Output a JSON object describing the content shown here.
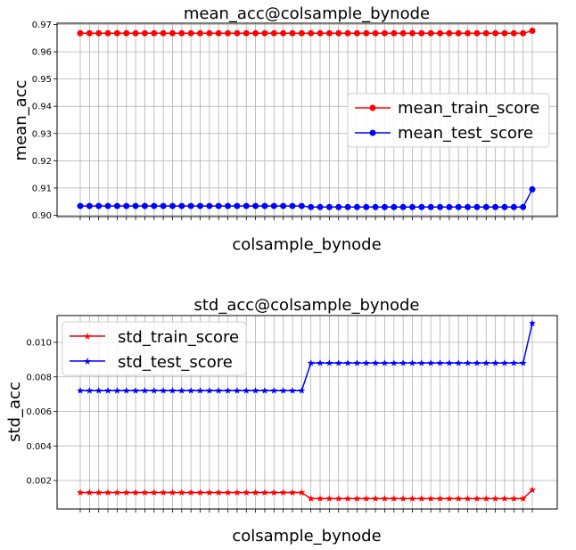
{
  "chart_data": [
    {
      "type": "line",
      "title": "mean_acc@colsample_bynode",
      "xlabel": "colsample_bynode",
      "ylabel": "mean_acc",
      "ylim": [
        0.8995,
        0.9705
      ],
      "yticks": [
        "0.90",
        "0.91",
        "0.92",
        "0.93",
        "0.94",
        "0.95",
        "0.96",
        "0.97"
      ],
      "grid": true,
      "legend_position": "center-right",
      "point_count": 50,
      "series": [
        {
          "name": "mean_train_score",
          "color": "#ff0000",
          "marker": "circle",
          "values": [
            0.9668,
            0.9668,
            0.9668,
            0.9668,
            0.9668,
            0.9668,
            0.9668,
            0.9668,
            0.9668,
            0.9668,
            0.9668,
            0.9668,
            0.9668,
            0.9668,
            0.9668,
            0.9668,
            0.9668,
            0.9668,
            0.9668,
            0.9668,
            0.9668,
            0.9668,
            0.9668,
            0.9668,
            0.9668,
            0.9668,
            0.9668,
            0.9668,
            0.9668,
            0.9668,
            0.9668,
            0.9668,
            0.9668,
            0.9668,
            0.9668,
            0.9668,
            0.9668,
            0.9668,
            0.9668,
            0.9668,
            0.9668,
            0.9668,
            0.9668,
            0.9668,
            0.9668,
            0.9668,
            0.9668,
            0.9668,
            0.9668,
            0.9677
          ]
        },
        {
          "name": "mean_test_score",
          "color": "#0000ff",
          "marker": "circle",
          "values": [
            0.9034,
            0.9034,
            0.9034,
            0.9034,
            0.9034,
            0.9034,
            0.9034,
            0.9034,
            0.9034,
            0.9034,
            0.9034,
            0.9034,
            0.9034,
            0.9034,
            0.9034,
            0.9034,
            0.9034,
            0.9034,
            0.9034,
            0.9034,
            0.9034,
            0.9034,
            0.9034,
            0.9034,
            0.9034,
            0.903,
            0.903,
            0.903,
            0.903,
            0.903,
            0.903,
            0.903,
            0.903,
            0.903,
            0.903,
            0.903,
            0.903,
            0.903,
            0.903,
            0.903,
            0.903,
            0.903,
            0.903,
            0.903,
            0.903,
            0.903,
            0.903,
            0.903,
            0.903,
            0.9095
          ]
        }
      ]
    },
    {
      "type": "line",
      "title": "std_acc@colsample_bynode",
      "xlabel": "colsample_bynode",
      "ylabel": "std_acc",
      "ylim": [
        0.00035,
        0.01155
      ],
      "yticks": [
        "0.002",
        "0.004",
        "0.006",
        "0.008",
        "0.010"
      ],
      "grid": true,
      "legend_position": "upper-left",
      "point_count": 50,
      "series": [
        {
          "name": "std_train_score",
          "color": "#ff0000",
          "marker": "star",
          "values": [
            0.0013,
            0.0013,
            0.0013,
            0.0013,
            0.0013,
            0.0013,
            0.0013,
            0.0013,
            0.0013,
            0.0013,
            0.0013,
            0.0013,
            0.0013,
            0.0013,
            0.0013,
            0.0013,
            0.0013,
            0.0013,
            0.0013,
            0.0013,
            0.0013,
            0.0013,
            0.0013,
            0.0013,
            0.0013,
            0.00095,
            0.00095,
            0.00095,
            0.00095,
            0.00095,
            0.00095,
            0.00095,
            0.00095,
            0.00095,
            0.00095,
            0.00095,
            0.00095,
            0.00095,
            0.00095,
            0.00095,
            0.00095,
            0.00095,
            0.00095,
            0.00095,
            0.00095,
            0.00095,
            0.00095,
            0.00095,
            0.00095,
            0.00145
          ]
        },
        {
          "name": "std_test_score",
          "color": "#0000ff",
          "marker": "star",
          "values": [
            0.0072,
            0.0072,
            0.0072,
            0.0072,
            0.0072,
            0.0072,
            0.0072,
            0.0072,
            0.0072,
            0.0072,
            0.0072,
            0.0072,
            0.0072,
            0.0072,
            0.0072,
            0.0072,
            0.0072,
            0.0072,
            0.0072,
            0.0072,
            0.0072,
            0.0072,
            0.0072,
            0.0072,
            0.0072,
            0.0088,
            0.0088,
            0.0088,
            0.0088,
            0.0088,
            0.0088,
            0.0088,
            0.0088,
            0.0088,
            0.0088,
            0.0088,
            0.0088,
            0.0088,
            0.0088,
            0.0088,
            0.0088,
            0.0088,
            0.0088,
            0.0088,
            0.0088,
            0.0088,
            0.0088,
            0.0088,
            0.0088,
            0.0111
          ]
        }
      ]
    }
  ]
}
